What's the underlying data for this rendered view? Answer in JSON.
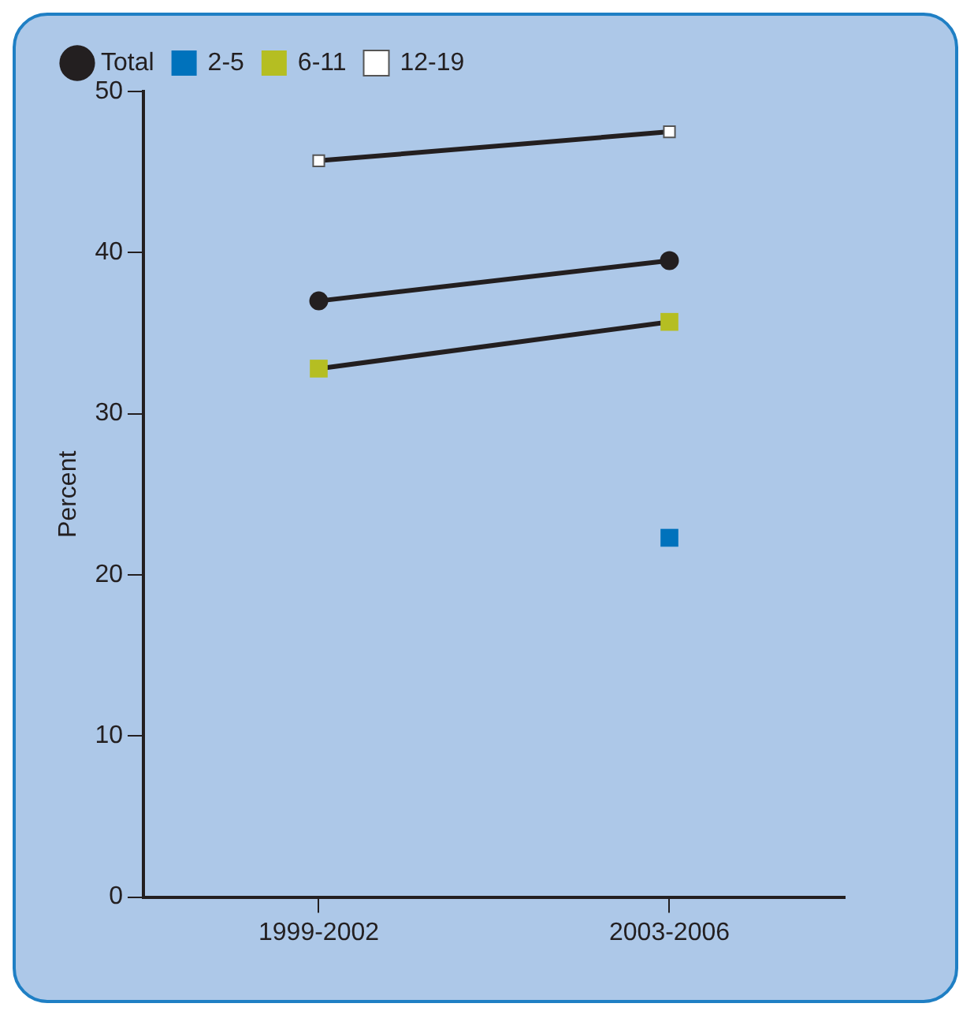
{
  "chart_data": {
    "type": "line",
    "ylabel": "Percent",
    "categories": [
      "1999-2002",
      "2003-2006"
    ],
    "series": [
      {
        "name": "Total",
        "color": "#231f20",
        "marker": "circle",
        "values": [
          37.0,
          39.5
        ]
      },
      {
        "name": "2-5",
        "color": "#0072bc",
        "marker": "square",
        "values": [
          null,
          22.3
        ]
      },
      {
        "name": "6-11",
        "color": "#b5be22",
        "marker": "square",
        "values": [
          32.8,
          35.7
        ]
      },
      {
        "name": "12-19",
        "color": "#ffffff",
        "marker": "square",
        "values": [
          45.7,
          47.5
        ]
      }
    ],
    "ylim": [
      0,
      50
    ],
    "yticks": [
      0,
      10,
      20,
      30,
      40,
      50
    ],
    "grid": false,
    "legend": "top left",
    "line_style": "solid"
  }
}
